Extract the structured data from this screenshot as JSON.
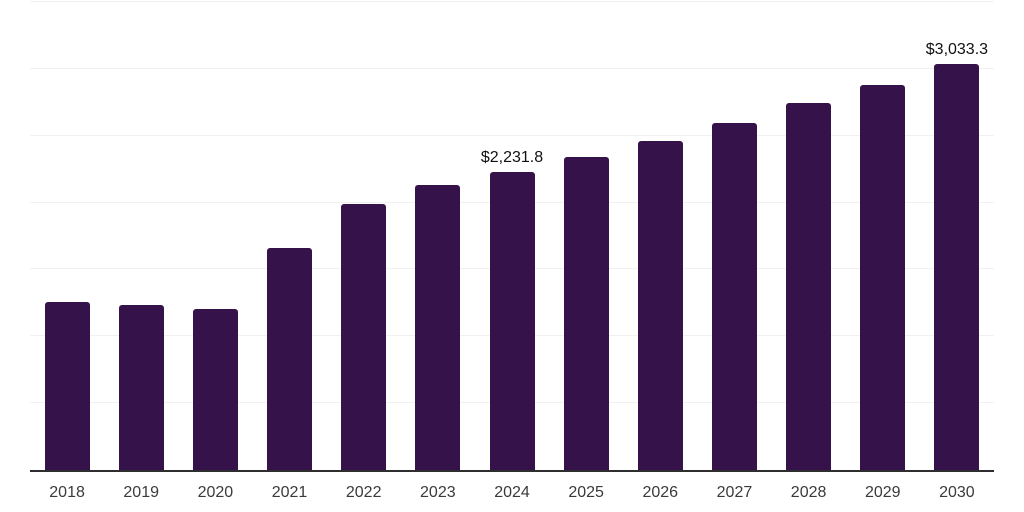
{
  "chart_data": {
    "type": "bar",
    "title": "",
    "xlabel": "",
    "ylabel": "",
    "categories": [
      "2018",
      "2019",
      "2020",
      "2021",
      "2022",
      "2023",
      "2024",
      "2025",
      "2026",
      "2027",
      "2028",
      "2029",
      "2030"
    ],
    "values": [
      1259,
      1234,
      1202,
      1660,
      1986,
      2131,
      2231.8,
      2343,
      2463,
      2597,
      2742,
      2883,
      3033.3
    ],
    "data_labels": {
      "2024": "$2,231.8",
      "2030": "$3,033.3"
    },
    "ylim": [
      0,
      3500
    ],
    "gridline_step": 500,
    "grid": "on",
    "legend": "none",
    "bar_color": "#351249",
    "colors": {
      "background": "#ffffff",
      "grid": "#f0f0f0",
      "axis": "#2e2e2e",
      "tick_label": "#3a3a3a",
      "data_label": "#111111"
    }
  }
}
